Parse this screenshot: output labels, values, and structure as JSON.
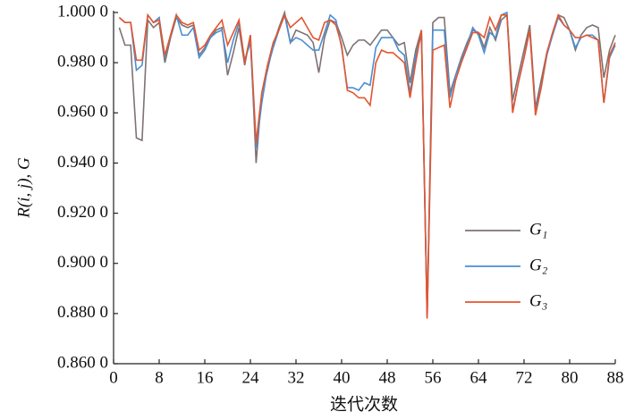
{
  "chart_data": {
    "type": "line",
    "y_label": "R(i, j), G",
    "x_label": "迭代次数",
    "x": [
      1,
      2,
      3,
      4,
      5,
      6,
      7,
      8,
      9,
      10,
      11,
      12,
      13,
      14,
      15,
      16,
      17,
      18,
      19,
      20,
      21,
      22,
      23,
      24,
      25,
      26,
      27,
      28,
      29,
      30,
      31,
      32,
      33,
      34,
      35,
      36,
      37,
      38,
      39,
      40,
      41,
      42,
      43,
      44,
      45,
      46,
      47,
      48,
      49,
      50,
      51,
      52,
      53,
      54,
      55,
      56,
      57,
      58,
      59,
      60,
      61,
      62,
      63,
      64,
      65,
      66,
      67,
      68,
      69,
      70,
      71,
      72,
      73,
      74,
      75,
      76,
      77,
      78,
      79,
      80,
      81,
      82,
      83,
      84,
      85,
      86,
      87,
      88
    ],
    "series": [
      {
        "name": "G₁",
        "color": "#7f7272",
        "values": [
          0.994,
          0.987,
          0.987,
          0.95,
          0.949,
          0.997,
          0.994,
          0.996,
          0.98,
          0.99,
          0.998,
          0.995,
          0.994,
          0.995,
          0.983,
          0.986,
          0.99,
          0.993,
          0.994,
          0.975,
          0.984,
          0.994,
          0.979,
          0.991,
          0.94,
          0.968,
          0.977,
          0.987,
          0.994,
          1.0,
          0.988,
          0.993,
          0.992,
          0.991,
          0.988,
          0.976,
          0.99,
          0.997,
          0.996,
          0.99,
          0.983,
          0.987,
          0.989,
          0.989,
          0.987,
          0.99,
          0.993,
          0.993,
          0.99,
          0.987,
          0.988,
          0.972,
          0.985,
          0.993,
          0.879,
          0.996,
          0.998,
          0.998,
          0.968,
          0.975,
          0.982,
          0.988,
          0.993,
          0.992,
          0.986,
          0.994,
          0.989,
          0.997,
          0.999,
          0.965,
          0.975,
          0.985,
          0.995,
          0.962,
          0.973,
          0.984,
          0.991,
          0.999,
          0.998,
          0.993,
          0.985,
          0.991,
          0.994,
          0.995,
          0.994,
          0.974,
          0.985,
          0.991
        ]
      },
      {
        "name": "G₂",
        "color": "#4a8fd4",
        "values": [
          0.998,
          0.996,
          0.996,
          0.977,
          0.979,
          0.999,
          0.996,
          0.998,
          0.982,
          0.991,
          0.999,
          0.991,
          0.991,
          0.994,
          0.982,
          0.985,
          0.99,
          0.992,
          0.993,
          0.98,
          0.989,
          0.996,
          0.981,
          0.988,
          0.946,
          0.964,
          0.978,
          0.986,
          0.993,
          0.999,
          0.988,
          0.99,
          0.989,
          0.987,
          0.985,
          0.985,
          0.992,
          0.999,
          0.997,
          0.986,
          0.97,
          0.97,
          0.969,
          0.972,
          0.971,
          0.986,
          0.99,
          0.99,
          0.99,
          0.985,
          0.983,
          0.968,
          0.983,
          0.991,
          0.878,
          0.993,
          0.993,
          0.993,
          0.966,
          0.975,
          0.981,
          0.987,
          0.994,
          0.991,
          0.984,
          0.992,
          0.99,
          0.999,
          1.0,
          0.961,
          0.972,
          0.982,
          0.993,
          0.961,
          0.97,
          0.983,
          0.991,
          0.998,
          0.995,
          0.993,
          0.986,
          0.99,
          0.991,
          0.991,
          0.989,
          0.964,
          0.982,
          0.987
        ]
      },
      {
        "name": "G₃",
        "color": "#e4552e",
        "values": [
          0.998,
          0.996,
          0.996,
          0.981,
          0.981,
          0.999,
          0.996,
          0.997,
          0.983,
          0.991,
          0.999,
          0.996,
          0.995,
          0.996,
          0.985,
          0.987,
          0.991,
          0.994,
          0.997,
          0.987,
          0.992,
          0.997,
          0.98,
          0.991,
          0.948,
          0.968,
          0.979,
          0.988,
          0.993,
          0.999,
          0.994,
          0.996,
          0.998,
          0.994,
          0.99,
          0.989,
          0.996,
          0.997,
          0.995,
          0.987,
          0.969,
          0.968,
          0.966,
          0.966,
          0.963,
          0.98,
          0.985,
          0.984,
          0.984,
          0.982,
          0.98,
          0.966,
          0.98,
          0.993,
          0.878,
          0.985,
          0.986,
          0.987,
          0.962,
          0.973,
          0.98,
          0.986,
          0.992,
          0.992,
          0.99,
          0.998,
          0.993,
          0.999,
          0.999,
          0.96,
          0.972,
          0.982,
          0.993,
          0.959,
          0.97,
          0.984,
          0.992,
          0.999,
          0.995,
          0.993,
          0.99,
          0.99,
          0.991,
          0.99,
          0.989,
          0.964,
          0.983,
          0.988
        ]
      }
    ],
    "xlim": [
      0,
      88
    ],
    "xticks": [
      0,
      8,
      16,
      24,
      32,
      40,
      48,
      56,
      64,
      72,
      80,
      88
    ],
    "ylim": [
      0.86,
      1.0
    ],
    "yticks": [
      {
        "value": 0.86,
        "label": "0.860 0"
      },
      {
        "value": 0.88,
        "label": "0.880 0"
      },
      {
        "value": 0.9,
        "label": "0.900 0"
      },
      {
        "value": 0.92,
        "label": "0.920 0"
      },
      {
        "value": 0.94,
        "label": "0.940 0"
      },
      {
        "value": 0.96,
        "label": "0.960 0"
      },
      {
        "value": 0.98,
        "label": "0.980 0"
      },
      {
        "value": 1.0,
        "label": "1.000 0"
      }
    ],
    "grid": false,
    "legend": "lower right"
  }
}
